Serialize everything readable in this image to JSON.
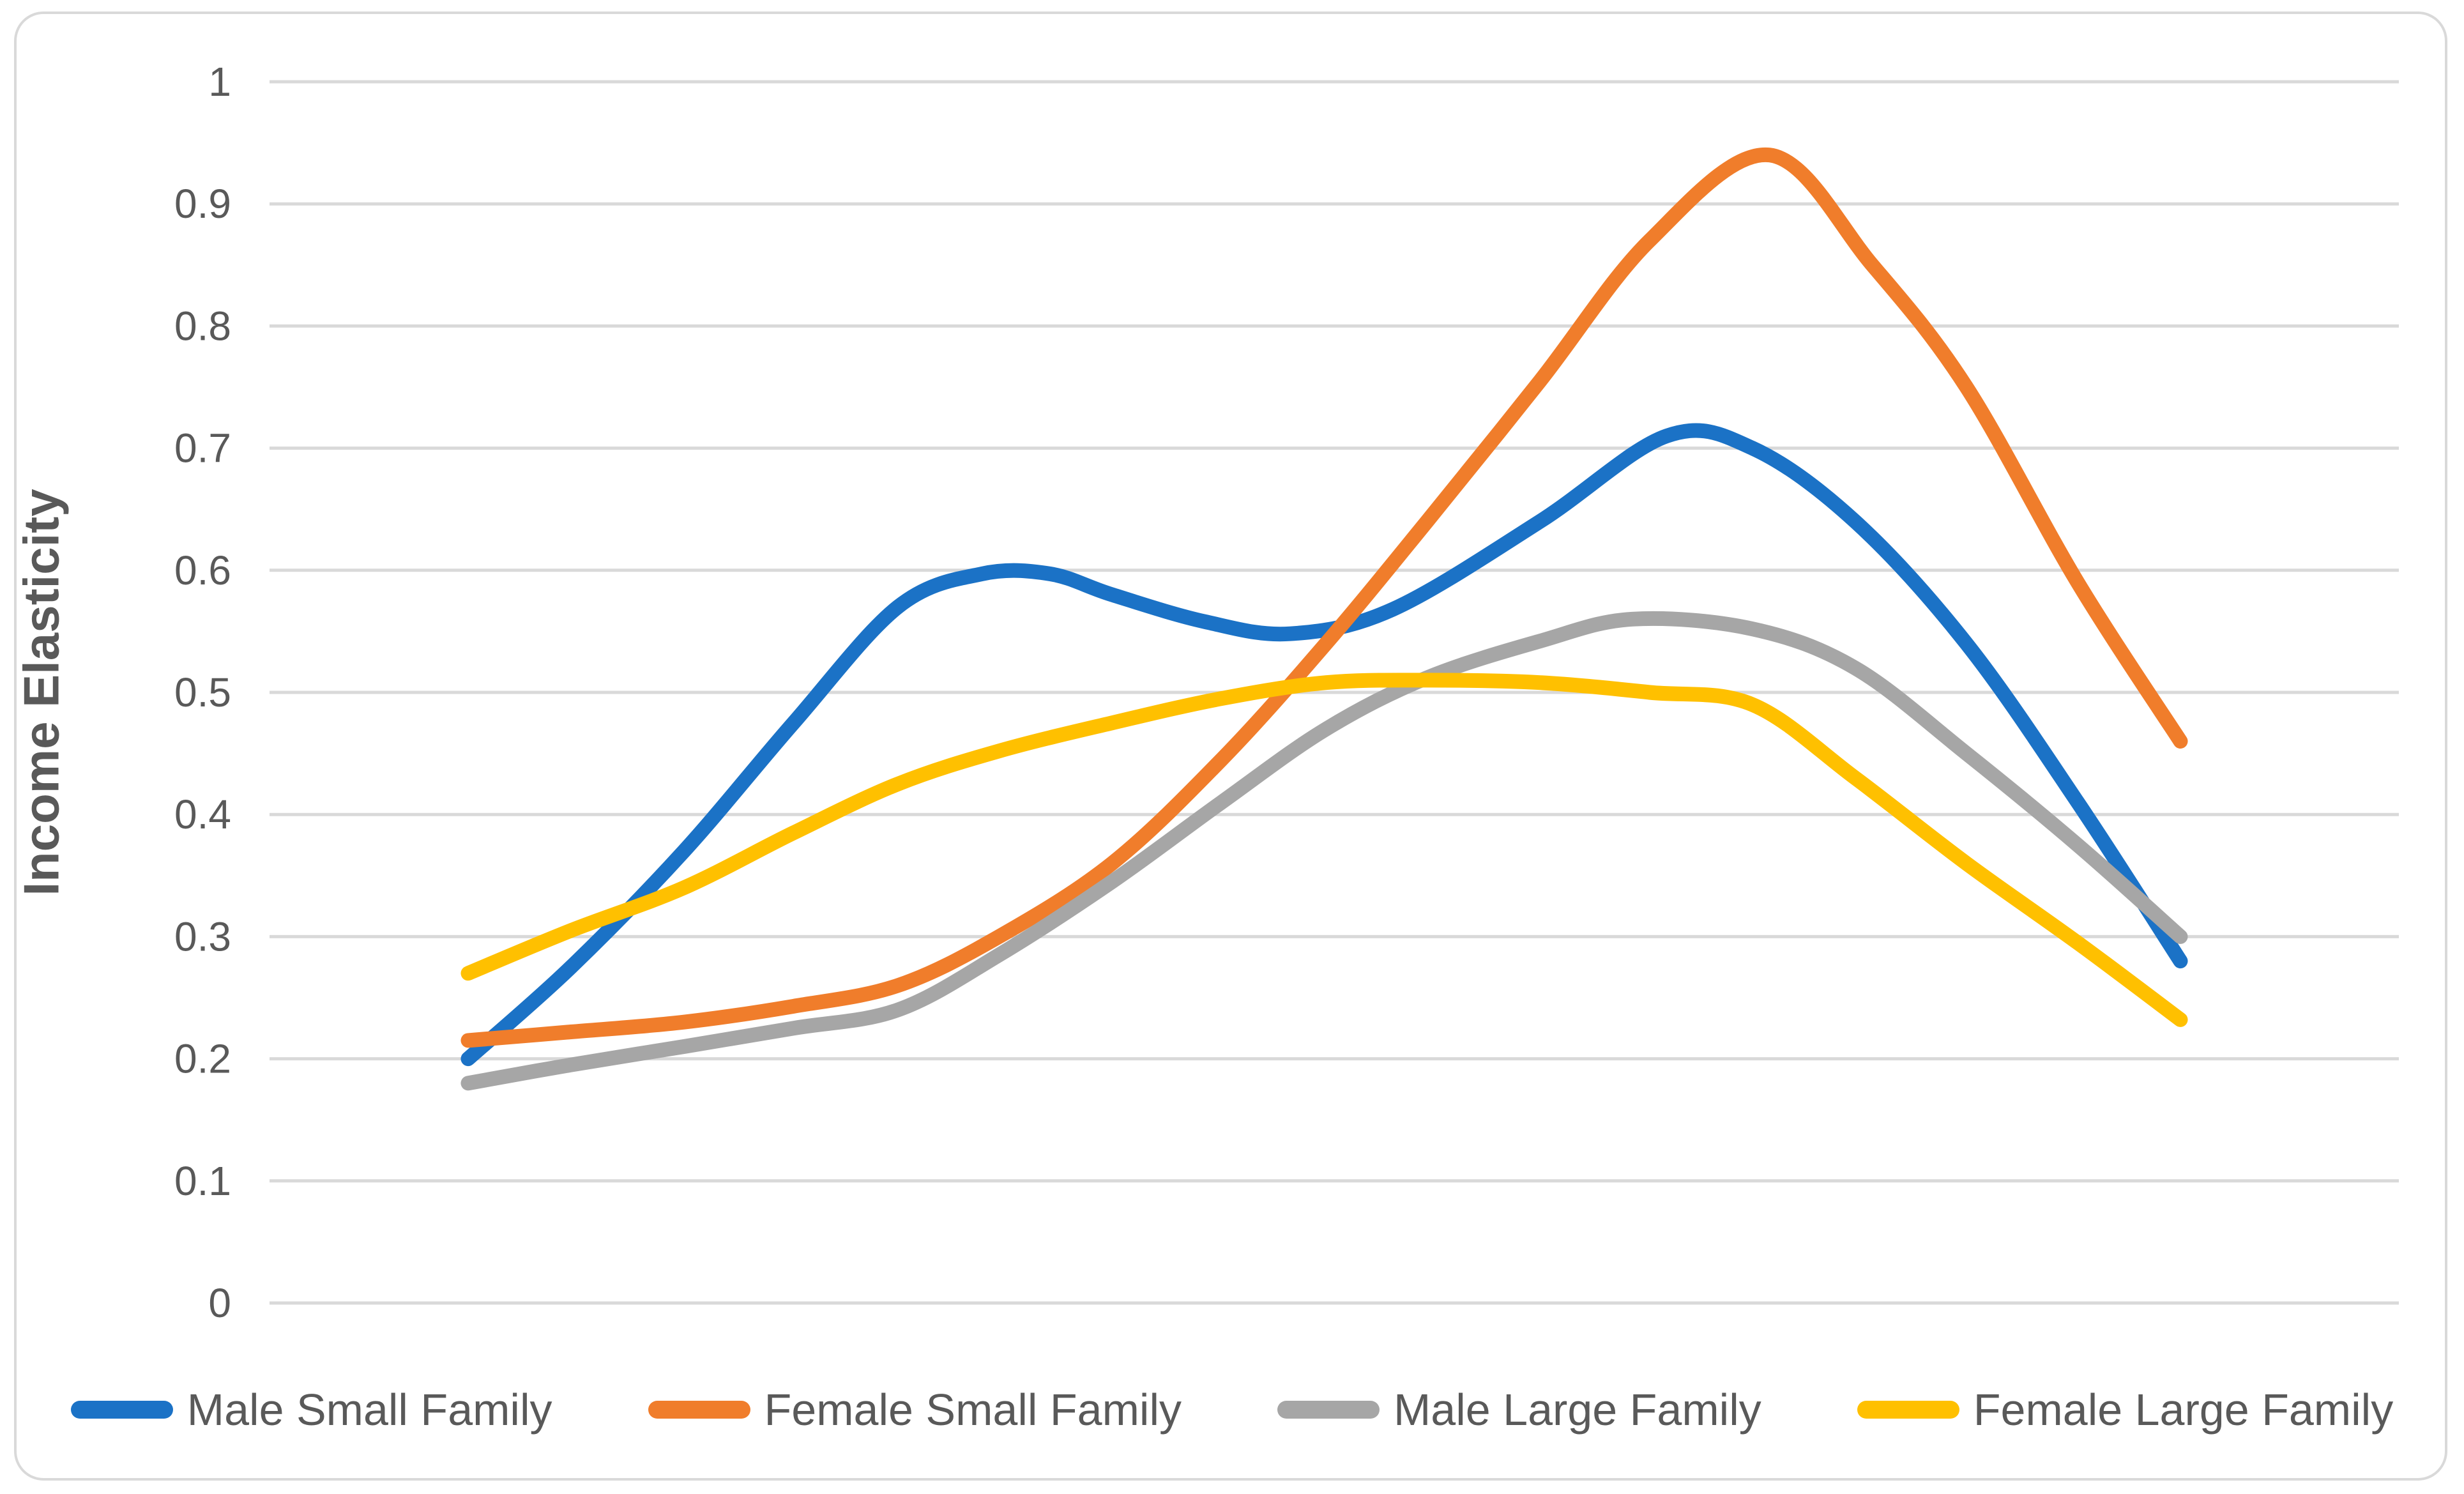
{
  "chart": {
    "title": "",
    "background_color": "#ffffff",
    "frame_border_color": "#d9d9d9",
    "grid_color": "#d9d9d9",
    "text_color": "#595959",
    "y_axis": {
      "title": "Income Elasticity",
      "min": 0,
      "max": 1,
      "ticks": [
        {
          "label": "1",
          "value": 1.0
        },
        {
          "label": "0.9",
          "value": 0.9
        },
        {
          "label": "0.8",
          "value": 0.8
        },
        {
          "label": "0.7",
          "value": 0.7
        },
        {
          "label": "0.6",
          "value": 0.6
        },
        {
          "label": "0.5",
          "value": 0.5
        },
        {
          "label": "0.4",
          "value": 0.4
        },
        {
          "label": "0.3",
          "value": 0.3
        },
        {
          "label": "0.2",
          "value": 0.2
        },
        {
          "label": "0.1",
          "value": 0.1
        },
        {
          "label": "0",
          "value": 0.0
        }
      ]
    },
    "x_axis": {
      "labels_visible": false
    },
    "legend": {
      "position": "bottom",
      "items": [
        {
          "label": "Male Small Family",
          "color": "#1b72c6"
        },
        {
          "label": "Female Small Family",
          "color": "#f07d2b"
        },
        {
          "label": "Male Large Family",
          "color": "#a6a6a6"
        },
        {
          "label": "Female Large Family",
          "color": "#ffc000"
        }
      ]
    }
  },
  "chart_data": {
    "type": "line",
    "title": "",
    "xlabel": "",
    "ylabel": "Income Elasticity",
    "ylim": [
      0,
      1
    ],
    "grid": "horizontal",
    "legend_position": "bottom",
    "x_axis_note": "x axis has no visible tick labels; x given as percent of plotted span",
    "series": [
      {
        "name": "Male Small Family",
        "color": "#1b72c6",
        "points": [
          [
            0,
            0.2
          ],
          [
            6,
            0.275
          ],
          [
            12.6,
            0.37
          ],
          [
            19,
            0.475
          ],
          [
            25.1,
            0.57
          ],
          [
            30,
            0.597
          ],
          [
            34,
            0.597
          ],
          [
            37.6,
            0.58
          ],
          [
            43,
            0.558
          ],
          [
            48,
            0.548
          ],
          [
            54,
            0.568
          ],
          [
            62.6,
            0.64
          ],
          [
            70,
            0.71
          ],
          [
            75,
            0.7
          ],
          [
            81,
            0.64
          ],
          [
            87.5,
            0.54
          ],
          [
            94,
            0.41
          ],
          [
            100,
            0.28
          ]
        ]
      },
      {
        "name": "Female Small Family",
        "color": "#f07d2b",
        "points": [
          [
            0,
            0.215
          ],
          [
            6,
            0.222
          ],
          [
            12.6,
            0.23
          ],
          [
            19,
            0.243
          ],
          [
            25.1,
            0.26
          ],
          [
            31,
            0.3
          ],
          [
            37.6,
            0.36
          ],
          [
            44,
            0.445
          ],
          [
            50.1,
            0.54
          ],
          [
            56,
            0.64
          ],
          [
            62.6,
            0.755
          ],
          [
            69,
            0.87
          ],
          [
            76,
            0.94
          ],
          [
            82,
            0.85
          ],
          [
            87.5,
            0.75
          ],
          [
            94,
            0.59
          ],
          [
            100,
            0.46
          ]
        ]
      },
      {
        "name": "Male Large Family",
        "color": "#a6a6a6",
        "points": [
          [
            0,
            0.18
          ],
          [
            6,
            0.195
          ],
          [
            12.6,
            0.21
          ],
          [
            19,
            0.225
          ],
          [
            25.1,
            0.24
          ],
          [
            31,
            0.285
          ],
          [
            37.6,
            0.345
          ],
          [
            44,
            0.41
          ],
          [
            50.1,
            0.47
          ],
          [
            56,
            0.512
          ],
          [
            62.6,
            0.542
          ],
          [
            68,
            0.56
          ],
          [
            75,
            0.552
          ],
          [
            81,
            0.52
          ],
          [
            87.5,
            0.45
          ],
          [
            94,
            0.375
          ],
          [
            100,
            0.3
          ]
        ]
      },
      {
        "name": "Female Large Family",
        "color": "#ffc000",
        "points": [
          [
            0,
            0.27
          ],
          [
            6,
            0.305
          ],
          [
            12.6,
            0.34
          ],
          [
            19,
            0.385
          ],
          [
            25.1,
            0.425
          ],
          [
            31,
            0.452
          ],
          [
            37.6,
            0.475
          ],
          [
            44,
            0.495
          ],
          [
            50.1,
            0.508
          ],
          [
            56,
            0.51
          ],
          [
            62.6,
            0.508
          ],
          [
            69,
            0.5
          ],
          [
            75,
            0.49
          ],
          [
            81,
            0.43
          ],
          [
            87.5,
            0.36
          ],
          [
            94,
            0.295
          ],
          [
            100,
            0.232
          ]
        ]
      }
    ]
  }
}
